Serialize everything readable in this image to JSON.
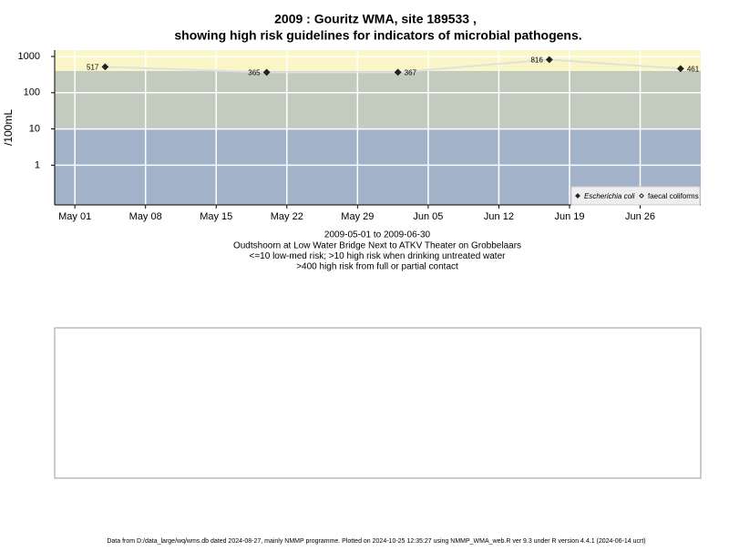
{
  "chart_data": {
    "type": "line",
    "title": "2009 : Gouritz WMA, site 189533 ,",
    "title2": "showing high risk guidelines for indicators of microbial pathogens.",
    "ylabel": "/100mL",
    "subtitle": [
      "2009-05-01 to 2009-06-30",
      "Oudtshoorn at Low Water Bridge Next to ATKV Theater on Grobbelaars",
      "<=10 low-med risk; >10 high risk when drinking untreated water",
      ">400 high risk from full or partial contact"
    ],
    "footer": "Data from D:/data_large/wq/wms.db dated 2024-08-27, mainly NMMP programme. Plotted on 2024-10-25 12:35:27 using NMMP_WMA_web.R ver 9.3 under R version 4.4.1 (2024-06-14 ucrt)",
    "log_y": true,
    "grid": true,
    "legend": "bottom-right",
    "thresholds": [
      10,
      400
    ],
    "band_colors": [
      "#a2b2c9",
      "#c3cbbf",
      "#fbf6c7"
    ],
    "line_color": "#e0e0e0",
    "xlim": [
      "2009-04-29",
      "2009-07-02"
    ],
    "ylim": [
      0.08,
      1500
    ],
    "yticks": [
      1,
      10,
      100,
      1000
    ],
    "xticks": [
      {
        "value": "2009-05-01",
        "label": "May 01"
      },
      {
        "value": "2009-05-08",
        "label": "May 08"
      },
      {
        "value": "2009-05-15",
        "label": "May 15"
      },
      {
        "value": "2009-05-22",
        "label": "May 22"
      },
      {
        "value": "2009-05-29",
        "label": "May 29"
      },
      {
        "value": "2009-06-05",
        "label": "Jun 05"
      },
      {
        "value": "2009-06-12",
        "label": "Jun 12"
      },
      {
        "value": "2009-06-19",
        "label": "Jun 19"
      },
      {
        "value": "2009-06-26",
        "label": "Jun 26"
      }
    ],
    "series": [
      {
        "name": "Escherichia coli",
        "color": "#222222",
        "filled": true,
        "x": [
          "2009-05-04",
          "2009-05-20",
          "2009-06-02",
          "2009-06-17",
          "2009-06-30"
        ],
        "values": [
          517,
          365,
          367,
          816,
          461
        ]
      },
      {
        "name": "faecal coliforms",
        "color": "#222222",
        "filled": false,
        "x": [],
        "values": []
      }
    ]
  }
}
